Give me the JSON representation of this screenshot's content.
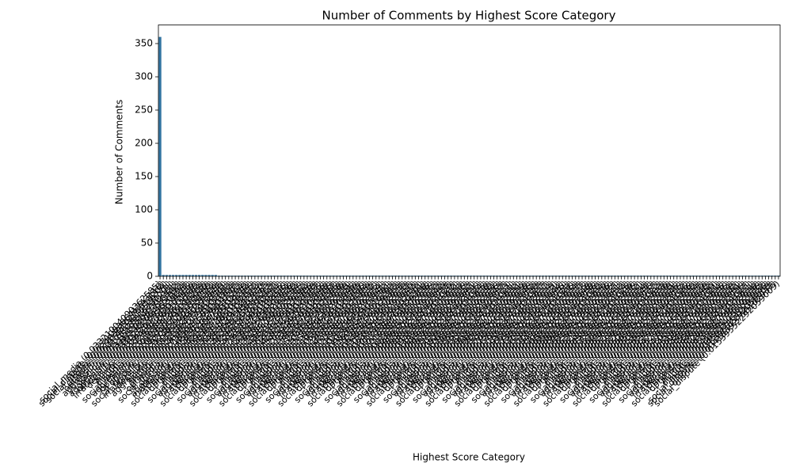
{
  "chart_data": {
    "type": "bar",
    "title": "Number of Comments by Highest Score Category",
    "x_label": "Highest Score Category",
    "y_label": "Number of Comments",
    "color": "#3274a1",
    "ylim": [
      0,
      378
    ],
    "yticks": [
      0,
      50,
      100,
      150,
      200,
      250,
      300,
      350
    ],
    "categories": [
      "social_media (0.03321004090362585)",
      "social_dispute (0.02710836641743118)",
      "social_media (0.02483910275513204)",
      "dispute (0.01974433810529771)",
      "optimism (0.04173928815734291)",
      "aggression (0.02285193746302981)",
      "opinion (0.03318204957716342)",
      "aggression (0.01957382064912833)",
      "optimism (0.03102847593620194)",
      "irrationality (0.01839204756128837)",
      "decision (0.02294857362019485)",
      "humor (0.01728394065172839)",
      "dispute (0.02519384756201938)",
      "social_media (0.02019384756120394)",
      "aggression (0.01682937465019283)",
      "optimism (0.02839405716283940)",
      "opinion (0.01920384756102938)",
      "social_dispute (0.02174839201928374)",
      "irrationality (0.01593847561029384)",
      "decision (0.01847362910293847)",
      "aggression (0.01528394756102938)",
      "humor (0.01483920174829301)",
      "dispute (0.01739284756102983)",
      "optimism (0.02183947561029384)",
      "social_media (0.01659384756201937)",
      "opinion (0.01583920475610293)",
      "aggression (0.01492038475610294)",
      "irrationality (0.01428394756102938)",
      "decision (0.01692837465019284)",
      "social_dispute (0.01583947561029385)",
      "optimism (0.01928374650192837)",
      "humor (0.01392847561029384)",
      "dispute (0.01648392017482930)",
      "social_media (0.01529384756102937)",
      "aggression (0.01392048375610293)",
      "opinion (0.01492837465019283)",
      "irrationality (0.01328475610293847)",
      "decision (0.01528394720192834)",
      "social_dispute (0.01492837465019285)",
      "optimism (0.01739284750192836)",
      "humor (0.01293847561029384)",
      "dispute (0.01529384756102936)",
      "social_media (0.01438475610293848)",
      "aggression (0.01293847650192834)",
      "opinion (0.01392847561029385)",
      "irrationality (0.01239847561029382)",
      "decision (0.01438295761029384)",
      "social_dispute (0.01392847561029386)",
      "optimism (0.01628394756102938)",
      "humor (0.01193847561029387)",
      "dispute (0.01428394756102935)",
      "social_media (0.01348275610293846)",
      "aggression (0.01203948576102938)",
      "opinion (0.01293847561029386)",
      "irrationality (0.01148392756102937)",
      "decision (0.01349285761029385)",
      "social_dispute (0.01293847561029388)",
      "optimism (0.01529384756102939)",
      "humor (0.01104938576102938)",
      "dispute (0.01329384756102931)",
      "social_media (0.01258374610293845)",
      "aggression (0.01119384756102939)",
      "opinion (0.01193847561029383)",
      "irrationality (0.01059384756102936)",
      "decision (0.01259384761029384)",
      "social_dispute (0.01193847561029389)",
      "optimism (0.01429384756102932)",
      "humor (0.01019384756102935)",
      "dispute (0.01229384756102934)",
      "social_media (0.01168374610293841)",
      "aggression (0.01029384756102932)",
      "opinion (0.01103847561029381)",
      "irrationality (0.00982938475610293)",
      "decision (0.01169384761029383)",
      "social_dispute (0.01103847561029384)",
      "optimism (0.01329384756102937)",
      "humor (0.00948392756102938)",
      "dispute (0.01139284756102937)",
      "social_media (0.01078374610293849)",
      "aggression (0.00948392756102934)",
      "opinion (0.01019384756102932)",
      "irrationality (0.00912938475610291)",
      "decision (0.01079384761029388)",
      "social_dispute (0.01019384756102936)",
      "optimism (0.01239384756102935)",
      "humor (0.00878392756102932)",
      "dispute (0.01049284756102933)",
      "social_media (0.00998374610293842)",
      "aggression (0.00878392756102939)",
      "opinion (0.00948392756102937)",
      "irrationality (0.00848293847561029)",
      "decision (0.00998384761029382)",
      "social_dispute (0.00948392756102931)",
      "optimism (0.01149384756102933)",
      "humor (0.00818392756102936)",
      "dispute (0.00969284756102932)",
      "social_media (0.00928374610293847)",
      "aggression (0.00818392756102931)",
      "opinion (0.00878392756102935)",
      "irrationality (0.00788293847561024)",
      "decision (0.00928384761029385)",
      "social_dispute (0.00878392756102938)",
      "optimism (0.01069384756102938)",
      "humor (0.00758392756102934)",
      "dispute (0.00899284756102936)",
      "social_media (0.00858374610293843)",
      "aggression (0.00758392756102937)",
      "opinion (0.00818392756102933)",
      "irrationality (0.00728293847561021)",
      "decision (0.00858384761029381)",
      "social_dispute (0.00818392756102932)",
      "optimism (0.00989384756102931)",
      "humor (0.00708392756102939)",
      "dispute (0.00829284756102938)",
      "social_media (0.00798374610293846)",
      "aggression (0.00708392756102932)",
      "opinion (0.00758392756102938)",
      "irrationality (0.00678293847561027)",
      "decision (0.00798384761029387)",
      "social_dispute (0.00758392756102937)",
      "optimism (0.00919384756102934)",
      "humor (0.00658392756102933)",
      "dispute (0.00769284756102931)",
      "social_media (0.00738374610293844)",
      "aggression (0.00658392756102936)",
      "opinion (0.00708392756102931)",
      "irrationality (0.00628293847561023)",
      "decision (0.00738384761029386)",
      "social_dispute (0.00708392756102934)",
      "optimism (0.00849384756102937)",
      "humor (0.00618392756102937)",
      "dispute (0.00709284756102935)",
      "social_media (0.00688374610293848)",
      "aggression (0.00618392756102938)",
      "opinion (0.00658392756102936)",
      "irrationality (0.00588293847561028)",
      "decision (0.00688384761029384)",
      "social_dispute (0.00658392756102939)",
      "optimism (0.00789384756102936)",
      "humor (0.00578392756102935)",
      "dispute (0.00659284756102937)",
      "social_media (0.00638374610293841)",
      "aggression (0.00578392756102933)",
      "opinion (0.00618392756102934)",
      "irrationality (0.00548293847561026)",
      "decision (0.00638384761029389)",
      "social_dispute (0.00618392756102935)",
      "optimism (0.00729384756102932)",
      "humor (0.00538392756102931)",
      "dispute (0.00609284756102934)",
      "social_media (0.00598374610293847)",
      "aggression (0.00538392756102936)",
      "opinion (0.00578392756102937)",
      "irrationality (0.00518293847561022)",
      "decision (0.00598384761029383)",
      "social_dispute (0.00578392756102933)",
      "optimism (0.00679384756102939)",
      "humor (0.00508392756102938)",
      "dispute (0.00569284756102931)",
      "social_media (0.00558374610293845)",
      "aggression (0.00508392756102935)",
      "opinion (0.00538392756102932)",
      "irrationality (0.00488293847561025)",
      "decision (0.00558384761029386)",
      "social_dispute (0.00538392756102938)",
      "optimism (0.00629384756102934)",
      "humor (0.00478392756102937)",
      "dispute (0.00529284756102939)",
      "social_media (0.00518374610293848)",
      "aggression (0.00478392756102932)",
      "opinion (0.00508392756102939)",
      "irrationality (0.00458293847561021)",
      "decision (0.00518384761029384)",
      "social_dispute (0.00508392756102936)",
      "optimism (0.00589384756102935)",
      "humor (0.00448392756102934)",
      "dispute (0.00499284756102938)",
      "social_media (0.00488374610293842)",
      "aggression (0.00448392756102931)",
      "opinion (0.00478392756102935)",
      "irrationality (0.00428293847561027)",
      "decision (0.00488384761029381)",
      "social_dispute (0.00478392756102931)",
      "optimism (0.00549384756102938)",
      "humor (0.00418392756102936)",
      "dispute (0.00469284756102932)",
      "social_media (0.00458374610293846)",
      "social_dispute (0.01539552292059008)",
      "dispute (0.00418392756102937)",
      "social_dispute (0.01539552292059009)"
    ],
    "values": [
      360,
      2,
      2,
      2,
      2,
      2,
      2,
      2,
      2,
      2,
      2,
      2,
      2,
      2,
      2,
      2,
      2,
      2,
      1,
      1,
      1,
      1,
      1,
      1,
      1,
      1,
      1,
      1,
      1,
      1,
      1,
      1,
      1,
      1,
      1,
      1,
      1,
      1,
      1,
      1,
      1,
      1,
      1,
      1,
      1,
      1,
      1,
      1,
      1,
      1,
      1,
      1,
      1,
      1,
      1,
      1,
      1,
      1,
      1,
      1,
      1,
      1,
      1,
      1,
      1,
      1,
      1,
      1,
      1,
      1,
      1,
      1,
      1,
      1,
      1,
      1,
      1,
      1,
      1,
      1,
      1,
      1,
      1,
      1,
      1,
      1,
      1,
      1,
      1,
      1,
      1,
      1,
      1,
      1,
      1,
      1,
      1,
      1,
      1,
      1,
      1,
      1,
      1,
      1,
      1,
      1,
      1,
      1,
      1,
      1,
      1,
      1,
      1,
      1,
      1,
      1,
      1,
      1,
      1,
      1,
      1,
      1,
      1,
      1,
      1,
      1,
      1,
      1,
      1,
      1,
      1,
      1,
      1,
      1,
      1,
      1,
      1,
      1,
      1,
      1,
      1,
      1,
      1,
      1,
      1,
      1,
      1,
      1,
      1,
      1,
      1,
      1,
      1,
      1,
      1,
      1,
      1,
      1,
      1,
      1,
      1,
      1,
      1,
      1,
      1,
      1,
      1,
      1,
      1,
      1,
      1,
      1,
      1,
      1,
      1,
      1,
      1,
      1,
      1,
      1,
      1,
      1,
      1,
      1,
      1,
      1,
      1,
      1,
      1,
      1
    ]
  }
}
